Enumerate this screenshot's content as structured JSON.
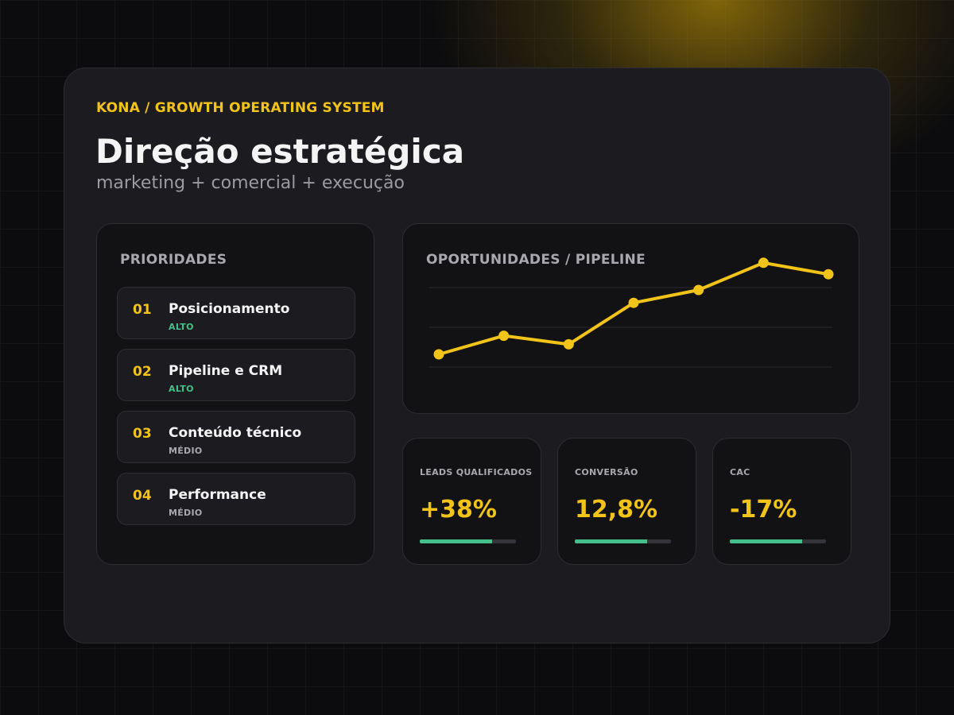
{
  "header": {
    "eyebrow": "KONA / GROWTH OPERATING SYSTEM",
    "title": "Direção estratégica",
    "subtitle": "marketing + comercial + execução"
  },
  "priorities": {
    "heading": "PRIORIDADES",
    "items": [
      {
        "num": "01",
        "label": "Posicionamento",
        "level": "ALTO",
        "level_color": "#45c08a"
      },
      {
        "num": "02",
        "label": "Pipeline e CRM",
        "level": "ALTO",
        "level_color": "#45c08a"
      },
      {
        "num": "03",
        "label": "Conteúdo técnico",
        "level": "MÉDIO",
        "level_color": "#a8a8ae"
      },
      {
        "num": "04",
        "label": "Performance",
        "level": "MÉDIO",
        "level_color": "#a8a8ae"
      }
    ]
  },
  "pipeline": {
    "heading": "OPORTUNIDADES / PIPELINE"
  },
  "chart_data": {
    "type": "line",
    "title": "OPORTUNIDADES / PIPELINE",
    "x": [
      1,
      2,
      3,
      4,
      5,
      6,
      7
    ],
    "series": [
      {
        "values": [
          20,
          33,
          27,
          56,
          65,
          84,
          76
        ]
      }
    ],
    "ylim": [
      0,
      100
    ],
    "grid": true,
    "color": "#f2c318"
  },
  "kpis": [
    {
      "label": "LEADS QUALIFICADOS",
      "value": "+38%",
      "progress": 0.75
    },
    {
      "label": "CONVERSÃO",
      "value": "12,8%",
      "progress": 0.75
    },
    {
      "label": "CAC",
      "value": "-17%",
      "progress": 0.75
    }
  ],
  "colors": {
    "accent": "#f2c318",
    "positive": "#45c08a",
    "background": "#0c0c0e",
    "panel": "#1c1c20"
  }
}
